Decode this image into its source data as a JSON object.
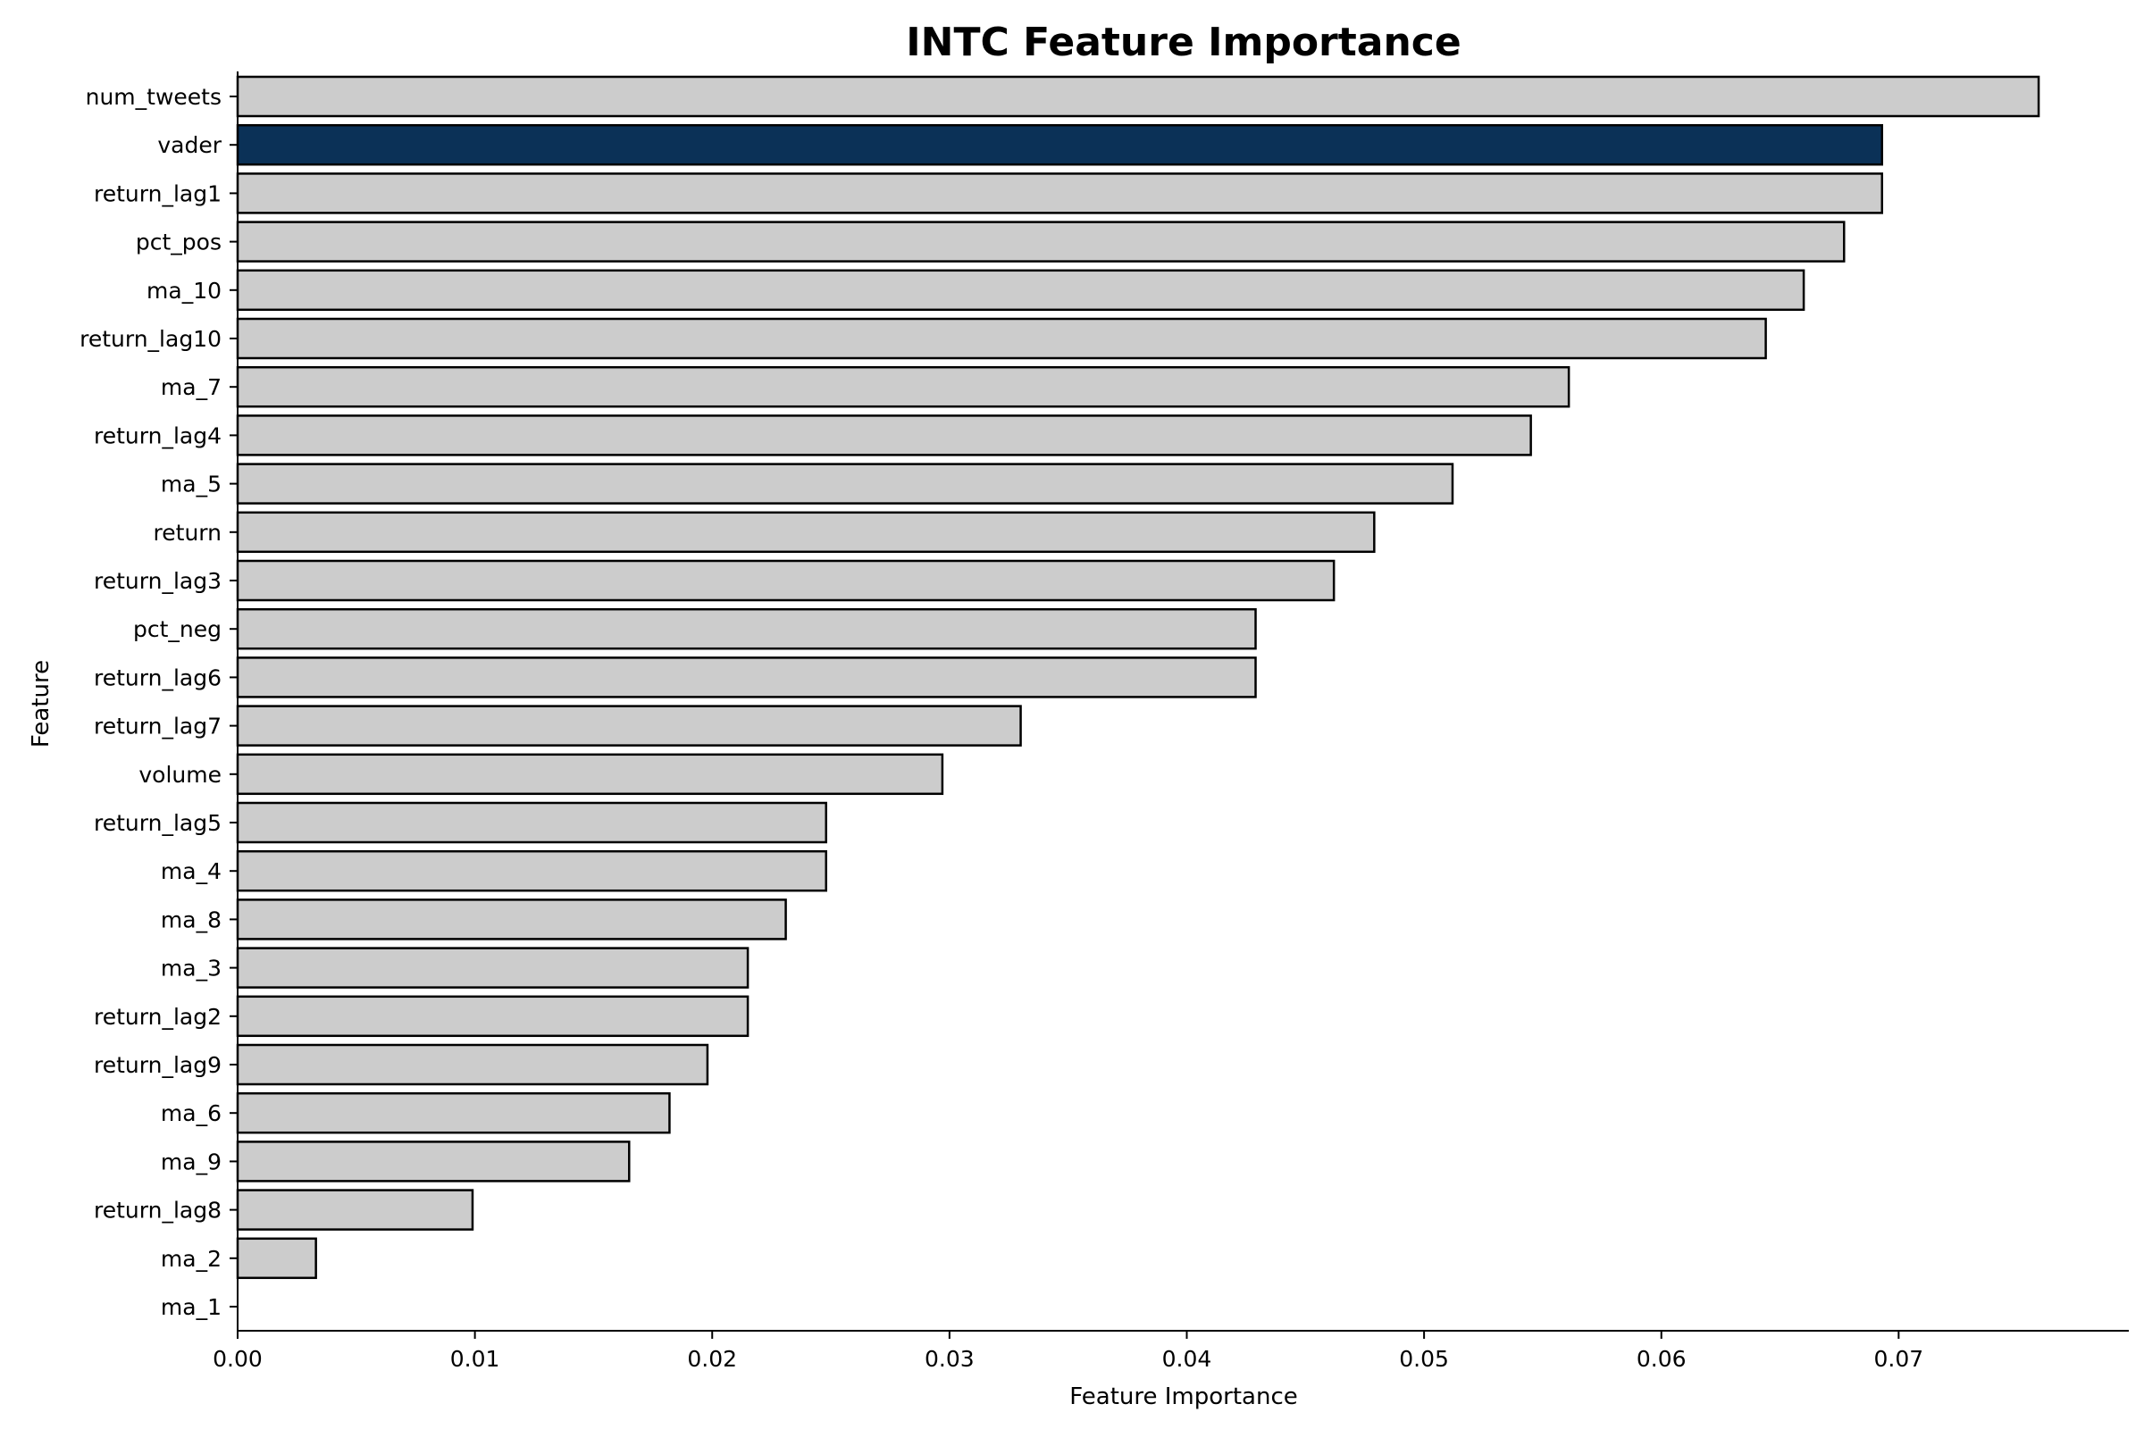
{
  "chart_data": {
    "type": "bar",
    "orientation": "horizontal",
    "title": "INTC Feature Importance",
    "xlabel": "Feature Importance",
    "ylabel": "Feature",
    "xlim": [
      0,
      0.0797
    ],
    "xticks": [
      "0.00",
      "0.01",
      "0.02",
      "0.03",
      "0.04",
      "0.05",
      "0.06",
      "0.07"
    ],
    "grid": false,
    "colors": {
      "default": "#cccccc",
      "highlight": "#0b3157",
      "edge": "#000000"
    },
    "highlight": "vader",
    "categories": [
      "num_tweets",
      "vader",
      "return_lag1",
      "pct_pos",
      "ma_10",
      "return_lag10",
      "ma_7",
      "return_lag4",
      "ma_5",
      "return",
      "return_lag3",
      "pct_neg",
      "return_lag6",
      "return_lag7",
      "volume",
      "return_lag5",
      "ma_4",
      "ma_8",
      "ma_3",
      "return_lag2",
      "return_lag9",
      "ma_6",
      "ma_9",
      "return_lag8",
      "ma_2",
      "ma_1"
    ],
    "values": [
      0.0759,
      0.0693,
      0.0693,
      0.0677,
      0.066,
      0.0644,
      0.0561,
      0.0545,
      0.0512,
      0.0479,
      0.0462,
      0.0429,
      0.0429,
      0.033,
      0.0297,
      0.0248,
      0.0248,
      0.0231,
      0.0215,
      0.0215,
      0.0198,
      0.0182,
      0.0165,
      0.0099,
      0.0033,
      0.0
    ]
  }
}
